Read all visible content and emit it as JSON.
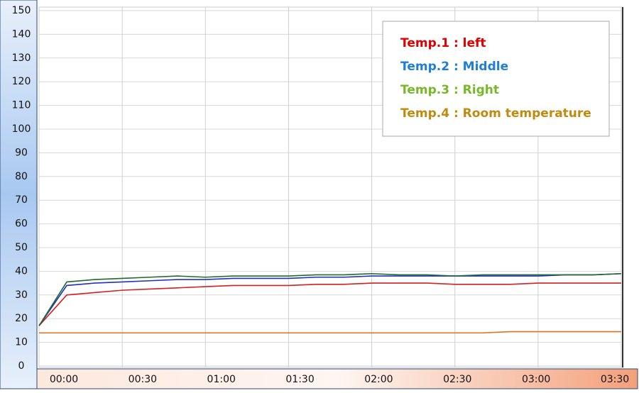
{
  "chart_data": {
    "type": "line",
    "x": [
      0,
      10,
      20,
      30,
      40,
      50,
      60,
      70,
      80,
      90,
      100,
      110,
      120,
      130,
      140,
      150,
      160,
      170,
      180,
      190,
      200,
      210
    ],
    "xlim": [
      0,
      210
    ],
    "xticks": [
      {
        "value": 0,
        "label": "00:00"
      },
      {
        "value": 30,
        "label": "00:30"
      },
      {
        "value": 60,
        "label": "01:00"
      },
      {
        "value": 90,
        "label": "01:30"
      },
      {
        "value": 120,
        "label": "02:00"
      },
      {
        "value": 150,
        "label": "02:30"
      },
      {
        "value": 180,
        "label": "03:00"
      },
      {
        "value": 210,
        "label": "03:30"
      }
    ],
    "ylim": [
      0,
      150
    ],
    "yticks": [
      0,
      10,
      20,
      30,
      40,
      50,
      60,
      70,
      80,
      90,
      100,
      110,
      120,
      130,
      140,
      150
    ],
    "grid": true,
    "legend": "upper right",
    "series": [
      {
        "name": "Temp.1 : left",
        "color": "#d42020",
        "label_color": "#e00000",
        "values": [
          17,
          30,
          31,
          32,
          32.5,
          33,
          33.5,
          34,
          34,
          34,
          34.5,
          34.5,
          35,
          35,
          35,
          34.5,
          34.5,
          34.5,
          35,
          35,
          35,
          35
        ]
      },
      {
        "name": "Temp.2 : Middle",
        "color": "#2030c0",
        "label_color": "#1e7fd8",
        "values": [
          17,
          34,
          35,
          35.5,
          36,
          36.5,
          36.5,
          37,
          37,
          37,
          37.5,
          37.5,
          38,
          38,
          38,
          38,
          38,
          38,
          38,
          38.5,
          38.5,
          39
        ]
      },
      {
        "name": "Temp.3 : Right",
        "color": "#206a30",
        "label_color": "#78b828",
        "values": [
          17,
          35.5,
          36.5,
          37,
          37.5,
          38,
          37.5,
          38,
          38,
          38,
          38.5,
          38.5,
          39,
          38.5,
          38.5,
          38,
          38.5,
          38.5,
          38.5,
          38.5,
          38.5,
          39
        ]
      },
      {
        "name": "Temp.4 : Room temperature",
        "color": "#e07020",
        "label_color": "#c08a10",
        "values": [
          14,
          14,
          14,
          14,
          14,
          14,
          14,
          14,
          14,
          14,
          14,
          14,
          14,
          14,
          14,
          14,
          14,
          14.5,
          14.5,
          14.5,
          14.5,
          14.5
        ]
      }
    ]
  }
}
